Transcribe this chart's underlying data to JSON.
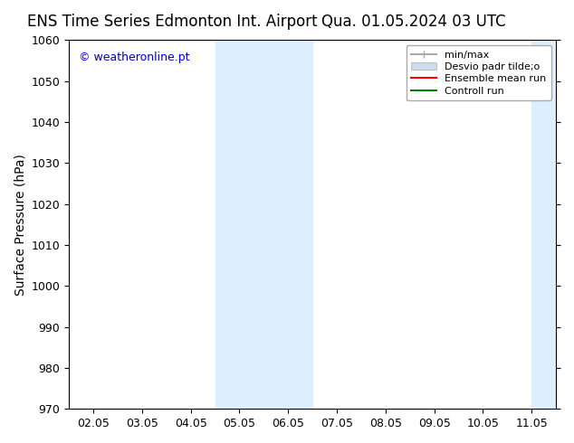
{
  "title_left": "ENS Time Series Edmonton Int. Airport",
  "title_right": "Qua. 01.05.2024 03 UTC",
  "ylabel": "Surface Pressure (hPa)",
  "ylim": [
    970,
    1060
  ],
  "yticks": [
    970,
    980,
    990,
    1000,
    1010,
    1020,
    1030,
    1040,
    1050,
    1060
  ],
  "xtick_labels": [
    "02.05",
    "03.05",
    "04.05",
    "05.05",
    "06.05",
    "07.05",
    "08.05",
    "09.05",
    "10.05",
    "11.05"
  ],
  "watermark": "© weatheronline.pt",
  "watermark_color": "#0000cc",
  "bg_color": "#ffffff",
  "plot_bg_color": "#ffffff",
  "shaded_regions": [
    {
      "xstart": 2.5,
      "xend": 4.5,
      "color": "#ddeeff"
    },
    {
      "xstart": 9.0,
      "xend": 10.5,
      "color": "#ddeeff"
    }
  ],
  "legend_entries": [
    {
      "label": "min/max",
      "color": "#aaaaaa",
      "lw": 1.5,
      "style": "minmax"
    },
    {
      "label": "Desvio padr tilde;o",
      "color": "#ccddee",
      "lw": 8,
      "style": "band"
    },
    {
      "label": "Ensemble mean run",
      "color": "#ff0000",
      "lw": 1.5,
      "style": "line"
    },
    {
      "label": "Controll run",
      "color": "#008000",
      "lw": 1.5,
      "style": "line"
    }
  ],
  "font_family": "DejaVu Sans",
  "title_fontsize": 12,
  "axis_fontsize": 10,
  "tick_fontsize": 9
}
